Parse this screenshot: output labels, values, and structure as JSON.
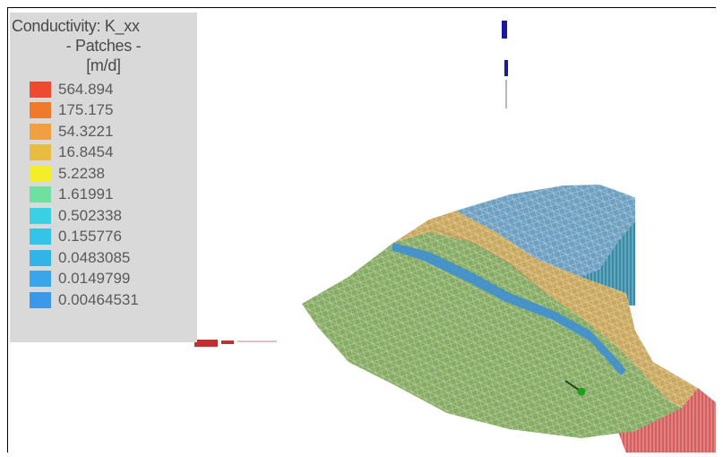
{
  "legend": {
    "title": "Conductivity: K_xx",
    "subtitle": "- Patches -",
    "unit": "[m/d]",
    "items": [
      {
        "label": "564.894",
        "color": "#ee4a2e"
      },
      {
        "label": "175.175",
        "color": "#f07a2c"
      },
      {
        "label": "54.3221",
        "color": "#f0a040"
      },
      {
        "label": "16.8454",
        "color": "#e8bc40"
      },
      {
        "label": "5.2238",
        "color": "#f2ef2a"
      },
      {
        "label": "1.61991",
        "color": "#70e0a0"
      },
      {
        "label": "0.502338",
        "color": "#3ad2e2"
      },
      {
        "label": "0.155776",
        "color": "#34c4e8"
      },
      {
        "label": "0.0483085",
        "color": "#32b4e8"
      },
      {
        "label": "0.0149799",
        "color": "#38a6e8"
      },
      {
        "label": "0.00464531",
        "color": "#3c98e8"
      }
    ]
  },
  "colors": {
    "green_zone": "#86ab63",
    "tan_zone": "#c9a85e",
    "blue_zone": "#6c9fc0",
    "wall_blue": "#3d87a3",
    "wall_red": "#c84a4a",
    "marker_blue": "#1a1aa0",
    "marker_green": "#1ea01e"
  }
}
